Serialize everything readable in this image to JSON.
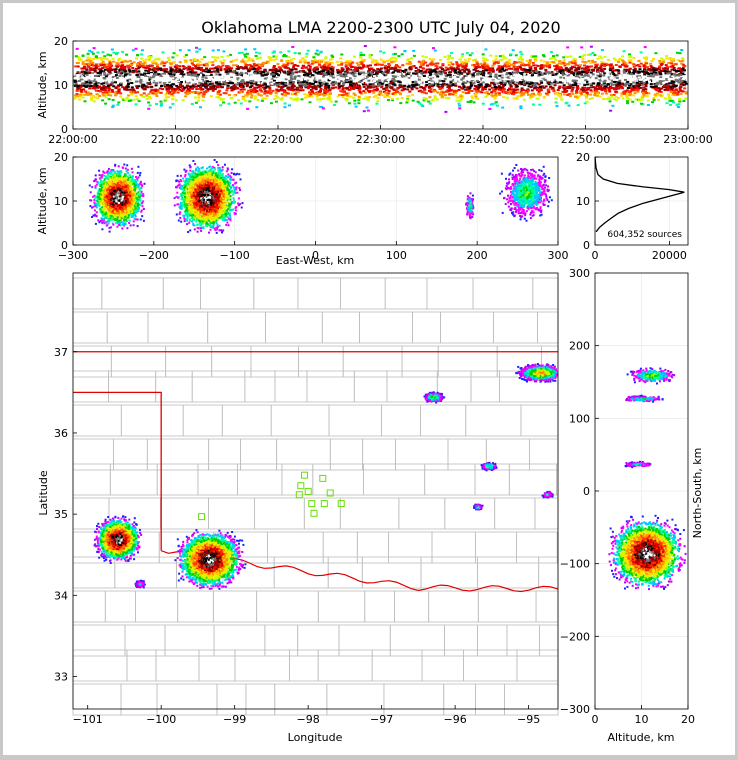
{
  "chart_data": [
    {
      "id": "time-height",
      "type": "heatmap",
      "title": "Oklahoma LMA 2200-2300 UTC July 04, 2020",
      "ylabel": "Altitude, km",
      "xlim": [
        "22:00:00",
        "23:00:00"
      ],
      "ylim": [
        0,
        20
      ],
      "xticks": [
        "22:00:00",
        "22:10:00",
        "22:20:00",
        "22:30:00",
        "22:40:00",
        "22:50:00",
        "23:00:00"
      ],
      "yticks": [
        "0",
        "10",
        "20"
      ],
      "band": {
        "altitude_range_km": [
          2,
          18
        ],
        "peak_altitude_km": 11.5,
        "coverage": "continuous 22:00-23:00"
      }
    },
    {
      "id": "east-west-altitude",
      "type": "heatmap",
      "xlabel": "East-West, km",
      "ylabel": "Altitude, km",
      "xlim": [
        -300,
        300
      ],
      "ylim": [
        0,
        20
      ],
      "xticks": [
        "−300",
        "−200",
        "−100",
        "0",
        "100",
        "200",
        "300"
      ],
      "yticks": [
        "0",
        "10",
        "20"
      ],
      "clusters": [
        {
          "x_center_km": -245,
          "x_halfwidth_km": 38,
          "alt_center_km": 11,
          "alt_halfwidth_km": 8,
          "intensity": 1.0
        },
        {
          "x_center_km": -135,
          "x_halfwidth_km": 45,
          "alt_center_km": 11,
          "alt_halfwidth_km": 9,
          "intensity": 1.0
        },
        {
          "x_center_km": 190,
          "x_halfwidth_km": 6,
          "alt_center_km": 9,
          "alt_halfwidth_km": 4,
          "intensity": 0.35
        },
        {
          "x_center_km": 260,
          "x_halfwidth_km": 35,
          "alt_center_km": 12,
          "alt_halfwidth_km": 7,
          "intensity": 0.4
        }
      ]
    },
    {
      "id": "altitude-histogram",
      "type": "line",
      "xlim": [
        0,
        25000
      ],
      "ylim": [
        0,
        20
      ],
      "xticks": [
        "0",
        "20000"
      ],
      "yticks": [
        "0",
        "10",
        "20"
      ],
      "annotation": "604,352 sources",
      "points": [
        [
          300,
          3
        ],
        [
          1200,
          4
        ],
        [
          2600,
          5
        ],
        [
          4200,
          6
        ],
        [
          6200,
          7.2
        ],
        [
          9000,
          8.3
        ],
        [
          13000,
          9.5
        ],
        [
          17500,
          10.5
        ],
        [
          21000,
          11.3
        ],
        [
          24000,
          12
        ],
        [
          20000,
          12.6
        ],
        [
          13000,
          13.2
        ],
        [
          6000,
          14
        ],
        [
          2200,
          15
        ],
        [
          800,
          16
        ],
        [
          300,
          17.5
        ],
        [
          100,
          19
        ],
        [
          40,
          20
        ]
      ]
    },
    {
      "id": "plan-view",
      "type": "heatmap",
      "xlabel": "Longitude",
      "ylabel": "Latitude",
      "xlim": [
        -101.2,
        -94.6
      ],
      "ylim": [
        32.6,
        37.97
      ],
      "xticks": [
        "−101",
        "−100",
        "−99",
        "−98",
        "−97",
        "−96",
        "−95"
      ],
      "yticks": [
        "33",
        "34",
        "35",
        "36",
        "37"
      ],
      "clusters": [
        {
          "lon": -100.6,
          "lat": 34.7,
          "rlon": 0.35,
          "rlat": 0.3,
          "intensity": 1.0
        },
        {
          "lon": -99.35,
          "lat": 34.45,
          "rlon": 0.5,
          "rlat": 0.4,
          "intensity": 1.0
        },
        {
          "lon": -96.3,
          "lat": 36.45,
          "rlon": 0.15,
          "rlat": 0.07,
          "intensity": 0.45
        },
        {
          "lon": -94.85,
          "lat": 36.75,
          "rlon": 0.35,
          "rlat": 0.12,
          "intensity": 0.6
        },
        {
          "lon": -95.55,
          "lat": 35.6,
          "rlon": 0.12,
          "rlat": 0.05,
          "intensity": 0.4
        },
        {
          "lon": -95.7,
          "lat": 35.1,
          "rlon": 0.07,
          "rlat": 0.04,
          "intensity": 0.3
        },
        {
          "lon": -94.75,
          "lat": 35.25,
          "rlon": 0.08,
          "rlat": 0.04,
          "intensity": 0.3
        },
        {
          "lon": -100.3,
          "lat": 34.15,
          "rlon": 0.08,
          "rlat": 0.05,
          "intensity": 0.3
        }
      ],
      "stations": [
        [
          -98.05,
          35.48
        ],
        [
          -97.8,
          35.44
        ],
        [
          -98.1,
          35.35
        ],
        [
          -98.0,
          35.28
        ],
        [
          -98.12,
          35.24
        ],
        [
          -97.7,
          35.26
        ],
        [
          -97.78,
          35.13
        ],
        [
          -97.95,
          35.13
        ],
        [
          -97.55,
          35.13
        ],
        [
          -97.92,
          35.01
        ],
        [
          -99.45,
          34.97
        ]
      ],
      "colors": {
        "state_border": "#e00000",
        "county_lines": "#bdbdbd",
        "station_marker": "#66e000"
      }
    },
    {
      "id": "north-south-altitude",
      "type": "heatmap",
      "xlabel": "Altitude, km",
      "ylabel": "North-South, km",
      "xlim": [
        0,
        20
      ],
      "ylim": [
        -300,
        300
      ],
      "xticks": [
        "0",
        "10",
        "20"
      ],
      "yticks": [
        "−300",
        "−200",
        "−100",
        "0",
        "100",
        "200",
        "300"
      ],
      "clusters": [
        {
          "alt_center_km": 11,
          "alt_halfwidth_km": 9,
          "ns_center_km": -85,
          "ns_halfwidth_km": 55,
          "intensity": 1.0
        },
        {
          "alt_center_km": 12,
          "alt_halfwidth_km": 6,
          "ns_center_km": 160,
          "ns_halfwidth_km": 12,
          "intensity": 0.45
        },
        {
          "alt_center_km": 10,
          "alt_halfwidth_km": 5,
          "ns_center_km": 128,
          "ns_halfwidth_km": 5,
          "intensity": 0.35
        },
        {
          "alt_center_km": 9,
          "alt_halfwidth_km": 4,
          "ns_center_km": 38,
          "ns_halfwidth_km": 4,
          "intensity": 0.3
        }
      ]
    }
  ]
}
